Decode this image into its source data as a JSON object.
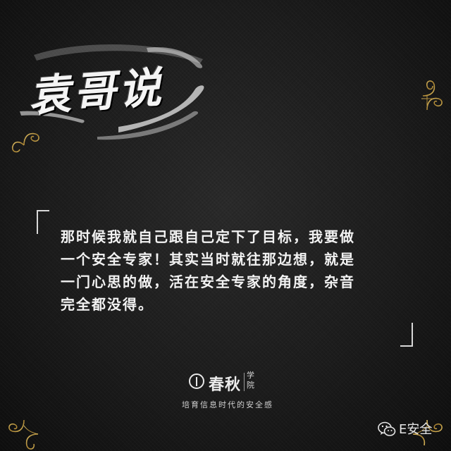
{
  "logo": {
    "text": "袁哥说"
  },
  "quote": {
    "lines": [
      "那时候我就自己跟自己定下了目标，我要做",
      "一个安全专家！其实当时就往那边想，就是",
      "一门心思的做，活在安全专家的角度，杂音",
      "完全都没得。"
    ]
  },
  "brand": {
    "name": "春秋",
    "sub": [
      "学",
      "院"
    ],
    "slogan": "培育信息时代的安全感"
  },
  "watermark": {
    "text": "E安全",
    "icon": "wechat-icon"
  },
  "colors": {
    "background": "#1c1c1c",
    "frame_gold": "#b8963c",
    "text": "#f2f2f2"
  }
}
